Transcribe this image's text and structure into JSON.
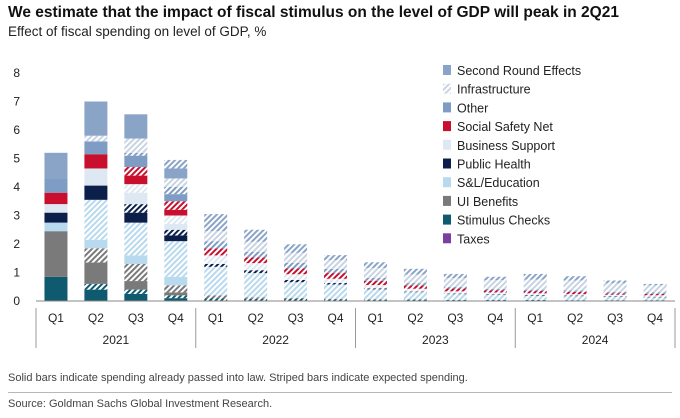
{
  "chart_data": {
    "type": "bar",
    "stacked": true,
    "title": "We estimate that the impact of fiscal stimulus on the level of GDP will peak in 2Q21",
    "subtitle": "Effect of fiscal spending on level of GDP, %",
    "ylabel": "",
    "xlabel": "",
    "ylim": [
      0,
      8
    ],
    "yticks": [
      0,
      1,
      2,
      3,
      4,
      5,
      6,
      7,
      8
    ],
    "categories": [
      "Q1",
      "Q2",
      "Q3",
      "Q4",
      "Q1",
      "Q2",
      "Q3",
      "Q4",
      "Q1",
      "Q2",
      "Q3",
      "Q4",
      "Q1",
      "Q2",
      "Q3",
      "Q4"
    ],
    "year_groups": [
      {
        "label": "2021",
        "start": 0,
        "end": 3
      },
      {
        "label": "2022",
        "start": 4,
        "end": 7
      },
      {
        "label": "2023",
        "start": 8,
        "end": 11
      },
      {
        "label": "2024",
        "start": 12,
        "end": 15
      }
    ],
    "legend_position": "top-right",
    "series": [
      {
        "name": "Taxes",
        "color": "#7b3fa0",
        "solid": [
          0,
          0,
          0,
          0,
          0,
          0,
          0,
          0,
          0,
          0,
          0,
          0,
          0,
          0,
          0,
          0
        ],
        "striped": [
          0,
          0,
          0,
          0,
          0,
          0,
          0,
          0,
          0,
          0,
          0,
          0,
          0,
          0,
          0,
          0
        ]
      },
      {
        "name": "Stimulus Checks",
        "color": "#0f5a6e",
        "solid": [
          0.85,
          0.4,
          0.25,
          0.1,
          0,
          0,
          0,
          0,
          0,
          0,
          0,
          0,
          0,
          0,
          0,
          0
        ],
        "striped": [
          0,
          0.2,
          0.15,
          0.1,
          0.1,
          0.08,
          0.08,
          0.06,
          0.05,
          0.05,
          0.04,
          0.04,
          0.04,
          0.03,
          0.03,
          0.03
        ]
      },
      {
        "name": "UI Benefits",
        "color": "#7a7a7a",
        "solid": [
          1.6,
          0.75,
          0.3,
          0.1,
          0,
          0,
          0,
          0,
          0,
          0,
          0,
          0,
          0,
          0,
          0,
          0
        ],
        "striped": [
          0,
          0.5,
          0.6,
          0.25,
          0.1,
          0.05,
          0.03,
          0.02,
          0.01,
          0.01,
          0,
          0,
          0,
          0,
          0,
          0
        ]
      },
      {
        "name": "S&L/Education",
        "color": "#b8d9ee",
        "solid": [
          0.3,
          0.3,
          0.3,
          0.3,
          0,
          0,
          0,
          0,
          0,
          0,
          0,
          0,
          0,
          0,
          0,
          0
        ],
        "striped": [
          0,
          1.4,
          1.15,
          1.25,
          1.0,
          0.85,
          0.55,
          0.5,
          0.35,
          0.25,
          0.2,
          0.18,
          0.15,
          0.14,
          0.12,
          0.1
        ]
      },
      {
        "name": "Public Health",
        "color": "#0b1f4a",
        "solid": [
          0.35,
          0.5,
          0.35,
          0.2,
          0,
          0,
          0,
          0,
          0,
          0,
          0,
          0,
          0,
          0,
          0,
          0
        ],
        "striped": [
          0,
          0,
          0.3,
          0.2,
          0.1,
          0.1,
          0.08,
          0.05,
          0.03,
          0.02,
          0.02,
          0.02,
          0.02,
          0.02,
          0.02,
          0.02
        ]
      },
      {
        "name": "Business Support",
        "color": "#dde8f3",
        "solid": [
          0.3,
          0.6,
          0.4,
          0.2,
          0,
          0,
          0,
          0,
          0,
          0,
          0,
          0,
          0,
          0,
          0,
          0
        ],
        "striped": [
          0,
          0,
          0.3,
          0.3,
          0.3,
          0.25,
          0.2,
          0.15,
          0.12,
          0.1,
          0.08,
          0.06,
          0.06,
          0.05,
          0.05,
          0.05
        ]
      },
      {
        "name": "Social Safety Net",
        "color": "#c8102e",
        "solid": [
          0.4,
          0.5,
          0.3,
          0.2,
          0,
          0,
          0,
          0,
          0,
          0,
          0,
          0,
          0,
          0,
          0,
          0
        ],
        "striped": [
          0,
          0,
          0.3,
          0.3,
          0.25,
          0.2,
          0.2,
          0.2,
          0.15,
          0.12,
          0.1,
          0.08,
          0.08,
          0.08,
          0.05,
          0.05
        ]
      },
      {
        "name": "Other",
        "color": "#7f9cc4",
        "solid": [
          0.5,
          0.45,
          0.4,
          0.25,
          0,
          0,
          0,
          0,
          0,
          0,
          0,
          0,
          0,
          0,
          0,
          0
        ],
        "striped": [
          0,
          0,
          0.1,
          0.25,
          0.25,
          0.2,
          0.2,
          0.15,
          0.1,
          0.08,
          0.06,
          0.05,
          0.05,
          0.05,
          0.05,
          0.05
        ]
      },
      {
        "name": "Infrastructure",
        "color": "#c9d4e2",
        "solid": [
          0,
          0,
          0,
          0,
          0,
          0,
          0,
          0,
          0,
          0,
          0,
          0,
          0,
          0,
          0,
          0
        ],
        "striped": [
          0,
          0.2,
          0.5,
          0.3,
          0.35,
          0.35,
          0.35,
          0.3,
          0.35,
          0.3,
          0.3,
          0.3,
          0.35,
          0.35,
          0.3,
          0.25
        ]
      },
      {
        "name": "Second Round Effects",
        "color": "#8aa4c8",
        "solid": [
          0.9,
          1.2,
          0.85,
          0.35,
          0,
          0,
          0,
          0,
          0,
          0,
          0,
          0,
          0,
          0,
          0,
          0
        ],
        "striped": [
          0,
          0,
          0,
          0.3,
          0.6,
          0.42,
          0.3,
          0.18,
          0.2,
          0.2,
          0.15,
          0.12,
          0.2,
          0.15,
          0.1,
          0.05
        ]
      }
    ],
    "legend_order": [
      "Second Round Effects",
      "Infrastructure",
      "Other",
      "Social Safety Net",
      "Business Support",
      "Public Health",
      "S&L/Education",
      "UI Benefits",
      "Stimulus Checks",
      "Taxes"
    ],
    "legend_striped": [
      "Infrastructure"
    ]
  },
  "footer": {
    "note": "Solid bars indicate spending already passed into law. Striped bars indicate expected spending.",
    "source": "Source: Goldman Sachs Global Investment Research."
  }
}
